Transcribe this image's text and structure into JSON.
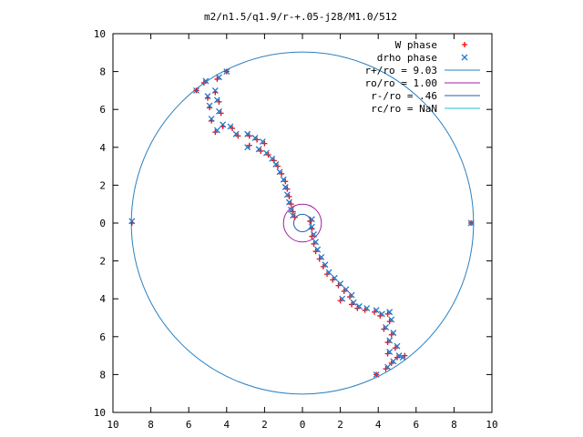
{
  "chart_data": {
    "type": "scatter",
    "title": "m2/n1.5/q1.9/r-+.05-j28/M1.0/512",
    "xlim": [
      -10,
      10
    ],
    "ylim": [
      -10,
      10
    ],
    "x_ticks": [
      -10,
      -8,
      -6,
      -4,
      -2,
      0,
      2,
      4,
      6,
      8,
      10
    ],
    "y_ticks": [
      -10,
      -8,
      -6,
      -4,
      -2,
      0,
      2,
      4,
      6,
      8,
      10
    ],
    "x_tick_labels": [
      "10",
      "8",
      "6",
      "4",
      "2",
      "0",
      "2",
      "4",
      "6",
      "8",
      "10"
    ],
    "y_tick_labels": [
      "10",
      "8",
      "6",
      "4",
      "2",
      "0",
      "2",
      "4",
      "6",
      "8",
      "10"
    ],
    "grid": false,
    "legend_position": "top-right",
    "legend": [
      {
        "label": "W phase",
        "marker": "plus",
        "color": "#ff0000"
      },
      {
        "label": "drho phase",
        "marker": "cross",
        "color": "#1f78c8"
      },
      {
        "label": "r+/ro = 9.03",
        "marker": "line",
        "color": "#2a80c0"
      },
      {
        "label": "ro/ro = 1.00",
        "marker": "line",
        "color": "#a020a0"
      },
      {
        "label": "r-/ro = .46",
        "marker": "line",
        "color": "#1e5fb4"
      },
      {
        "label": "rc/ro = NaN",
        "marker": "line",
        "color": "#20c0d0"
      }
    ],
    "circles": [
      {
        "name": "r+/ro",
        "radius": 9.03,
        "color": "#2a80c0"
      },
      {
        "name": "ro/ro",
        "radius": 1.0,
        "color": "#a020a0"
      },
      {
        "name": "r-/ro",
        "radius": 0.46,
        "color": "#1e5fb4"
      }
    ],
    "series": [
      {
        "name": "W phase",
        "color": "#ff0000",
        "marker": "plus",
        "points": [
          [
            -4.0,
            8.0
          ],
          [
            -4.5,
            7.6
          ],
          [
            -5.2,
            7.4
          ],
          [
            -5.6,
            7.0
          ],
          [
            -4.6,
            6.9
          ],
          [
            -5.0,
            6.6
          ],
          [
            -4.4,
            6.4
          ],
          [
            -4.9,
            6.1
          ],
          [
            -4.3,
            5.8
          ],
          [
            -4.8,
            5.4
          ],
          [
            -4.2,
            5.1
          ],
          [
            -4.6,
            4.8
          ],
          [
            -3.7,
            5.0
          ],
          [
            -3.4,
            4.6
          ],
          [
            -2.8,
            4.6
          ],
          [
            -2.4,
            4.4
          ],
          [
            -2.0,
            4.2
          ],
          [
            -2.8,
            4.1
          ],
          [
            -2.2,
            3.8
          ],
          [
            -1.8,
            3.6
          ],
          [
            -1.5,
            3.3
          ],
          [
            -1.3,
            3.0
          ],
          [
            -1.1,
            2.6
          ],
          [
            -0.9,
            2.2
          ],
          [
            -0.8,
            1.8
          ],
          [
            -0.7,
            1.4
          ],
          [
            -0.6,
            1.0
          ],
          [
            -0.5,
            0.6
          ],
          [
            -0.4,
            0.3
          ],
          [
            -9.0,
            0.0
          ],
          [
            8.9,
            0.0
          ],
          [
            0.4,
            0.1
          ],
          [
            0.5,
            -0.3
          ],
          [
            0.5,
            -0.7
          ],
          [
            0.6,
            -1.1
          ],
          [
            0.7,
            -1.5
          ],
          [
            0.9,
            -1.9
          ],
          [
            1.1,
            -2.3
          ],
          [
            1.3,
            -2.7
          ],
          [
            1.6,
            -3.0
          ],
          [
            1.9,
            -3.3
          ],
          [
            2.2,
            -3.6
          ],
          [
            2.5,
            -3.9
          ],
          [
            2.0,
            -4.1
          ],
          [
            2.6,
            -4.3
          ],
          [
            2.9,
            -4.5
          ],
          [
            3.3,
            -4.6
          ],
          [
            3.8,
            -4.7
          ],
          [
            4.1,
            -4.9
          ],
          [
            4.5,
            -4.8
          ],
          [
            4.6,
            -5.2
          ],
          [
            4.3,
            -5.6
          ],
          [
            4.7,
            -5.9
          ],
          [
            4.5,
            -6.3
          ],
          [
            4.9,
            -6.6
          ],
          [
            4.5,
            -6.9
          ],
          [
            5.0,
            -7.1
          ],
          [
            5.4,
            -7.0
          ],
          [
            4.7,
            -7.4
          ],
          [
            4.4,
            -7.7
          ],
          [
            3.9,
            -8.0
          ]
        ]
      },
      {
        "name": "drho phase",
        "color": "#1f78c8",
        "marker": "cross",
        "points": [
          [
            -4.0,
            8.0
          ],
          [
            -4.4,
            7.7
          ],
          [
            -5.1,
            7.5
          ],
          [
            -5.6,
            7.0
          ],
          [
            -4.6,
            7.0
          ],
          [
            -5.0,
            6.7
          ],
          [
            -4.5,
            6.5
          ],
          [
            -4.9,
            6.2
          ],
          [
            -4.4,
            5.9
          ],
          [
            -4.8,
            5.5
          ],
          [
            -4.2,
            5.2
          ],
          [
            -4.5,
            4.9
          ],
          [
            -3.8,
            5.1
          ],
          [
            -3.5,
            4.7
          ],
          [
            -2.9,
            4.7
          ],
          [
            -2.5,
            4.5
          ],
          [
            -2.1,
            4.3
          ],
          [
            -2.9,
            4.0
          ],
          [
            -2.3,
            3.9
          ],
          [
            -1.9,
            3.7
          ],
          [
            -1.6,
            3.4
          ],
          [
            -1.4,
            3.1
          ],
          [
            -1.2,
            2.7
          ],
          [
            -1.0,
            2.3
          ],
          [
            -0.9,
            1.9
          ],
          [
            -0.8,
            1.5
          ],
          [
            -0.7,
            1.1
          ],
          [
            -0.6,
            0.7
          ],
          [
            -0.5,
            0.4
          ],
          [
            -9.0,
            0.1
          ],
          [
            8.9,
            0.0
          ],
          [
            0.5,
            0.2
          ],
          [
            0.5,
            -0.2
          ],
          [
            0.6,
            -0.6
          ],
          [
            0.7,
            -1.0
          ],
          [
            0.8,
            -1.4
          ],
          [
            1.0,
            -1.8
          ],
          [
            1.2,
            -2.2
          ],
          [
            1.4,
            -2.6
          ],
          [
            1.7,
            -2.9
          ],
          [
            2.0,
            -3.2
          ],
          [
            2.3,
            -3.5
          ],
          [
            2.6,
            -3.8
          ],
          [
            2.1,
            -4.0
          ],
          [
            2.7,
            -4.2
          ],
          [
            3.0,
            -4.4
          ],
          [
            3.4,
            -4.5
          ],
          [
            3.9,
            -4.6
          ],
          [
            4.2,
            -4.8
          ],
          [
            4.6,
            -4.7
          ],
          [
            4.7,
            -5.1
          ],
          [
            4.4,
            -5.5
          ],
          [
            4.8,
            -5.8
          ],
          [
            4.6,
            -6.2
          ],
          [
            5.0,
            -6.5
          ],
          [
            4.6,
            -6.8
          ],
          [
            5.1,
            -7.0
          ],
          [
            5.3,
            -7.1
          ],
          [
            4.8,
            -7.3
          ],
          [
            4.5,
            -7.6
          ],
          [
            3.9,
            -8.0
          ]
        ]
      }
    ]
  }
}
